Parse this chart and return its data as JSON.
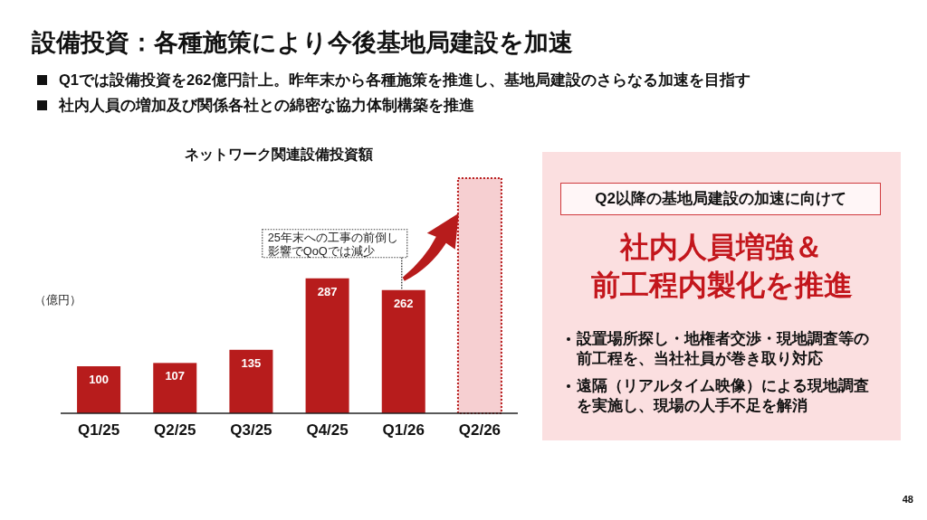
{
  "chart_data": [
    {
      "type": "other",
      "title": "設備投資：各種施策により今後基地局建設を加速",
      "annotations": [
        "Q1では設備投資を262億円計上。昨年末から各種施策を推進し、基地局建設のさらなる加速を目指す",
        "社内人員の増加及び関係各社との綿密な協力体制構築を推進",
        "48"
      ]
    },
    {
      "type": "bar",
      "title": "ネットワーク関連設備投資額",
      "ylabel": "（億円）",
      "categories": [
        "Q1/25",
        "Q2/25",
        "Q3/25",
        "Q4/25",
        "Q1/26",
        "Q2/26"
      ],
      "series": [
        {
          "color": "#b71c1c",
          "values": [
            100,
            107,
            135,
            287,
            262,
            null
          ],
          "value_labels": [
            "100",
            "107",
            "135",
            "287",
            "262",
            null
          ]
        },
        {
          "color": "#f6cfd1",
          "values": [
            null,
            null,
            null,
            null,
            null,
            500
          ],
          "line_style": "dotted"
        }
      ],
      "annotations": [
        {
          "text": "25年末への工事の前倒し影響でQoQでは減少",
          "x": "Q1/26",
          "y": 262
        }
      ]
    },
    {
      "type": "other",
      "title": "Q2以降の基地局建設の加速に向けて",
      "subtitle": "社内人員増強＆前工程内製化を推進",
      "annotations": [
        "設置場所探し・地権者交渉・現地調査等の前工程を、当社社員が巻き取り対応",
        "遠隔（リアルタイム映像）による現地調査を実施し、現場の人手不足を解消"
      ]
    }
  ]
}
